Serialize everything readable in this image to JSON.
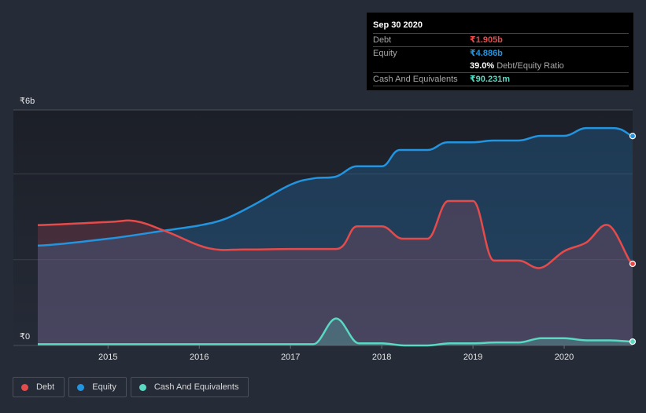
{
  "chart_data": {
    "type": "area",
    "title": "",
    "xlabel": "",
    "ylabel": "",
    "x_ticks": [
      "2015",
      "2016",
      "2017",
      "2018",
      "2019",
      "2020"
    ],
    "y_tick_labels": {
      "top": "₹6b",
      "bottom": "₹0"
    },
    "gridlines_b": [
      2,
      4
    ],
    "ylim_b": [
      0,
      5.5
    ],
    "xlim_year": [
      2014.23,
      2020.75
    ],
    "grid": true,
    "legend_position": "bottom-left",
    "series": [
      {
        "name": "Debt",
        "color": "#e64b4b",
        "x": [
          2014.23,
          2015.0,
          2015.3,
          2015.65,
          2016.1,
          2016.5,
          2017.0,
          2017.5,
          2017.73,
          2018.0,
          2018.23,
          2018.5,
          2018.73,
          2019.0,
          2019.23,
          2019.5,
          2019.74,
          2020.0,
          2020.24,
          2020.49,
          2020.75
        ],
        "values": [
          2.81,
          2.88,
          2.9,
          2.65,
          2.27,
          2.24,
          2.25,
          2.25,
          2.78,
          2.78,
          2.49,
          2.49,
          3.37,
          3.37,
          1.98,
          1.98,
          1.81,
          2.2,
          2.4,
          2.8,
          1.905
        ]
      },
      {
        "name": "Equity",
        "color": "#2394df",
        "x": [
          2014.23,
          2015.0,
          2015.65,
          2016.0,
          2016.28,
          2016.58,
          2017.0,
          2017.26,
          2017.5,
          2017.73,
          2018.0,
          2018.2,
          2018.5,
          2018.72,
          2019.0,
          2019.22,
          2019.5,
          2019.74,
          2020.0,
          2020.24,
          2020.49,
          2020.62,
          2020.75
        ],
        "values": [
          2.33,
          2.49,
          2.69,
          2.8,
          2.95,
          3.26,
          3.75,
          3.9,
          3.94,
          4.18,
          4.18,
          4.56,
          4.56,
          4.74,
          4.74,
          4.78,
          4.78,
          4.89,
          4.89,
          5.07,
          5.07,
          5.04,
          4.886
        ]
      },
      {
        "name": "Cash And Equivalents",
        "color": "#59d9c2",
        "x": [
          2014.23,
          2015.0,
          2016.0,
          2017.0,
          2017.25,
          2017.5,
          2017.75,
          2018.0,
          2018.25,
          2018.5,
          2018.75,
          2019.0,
          2019.25,
          2019.5,
          2019.75,
          2020.0,
          2020.25,
          2020.5,
          2020.75
        ],
        "values": [
          0.03,
          0.03,
          0.03,
          0.03,
          0.03,
          0.63,
          0.05,
          0.05,
          0.0,
          0.0,
          0.05,
          0.05,
          0.07,
          0.07,
          0.17,
          0.17,
          0.12,
          0.12,
          0.09
        ]
      }
    ]
  },
  "tooltip": {
    "date": "Sep 30 2020",
    "rows": {
      "debt": {
        "label": "Debt",
        "value": "₹1.905b",
        "color": "#e64b4b"
      },
      "equity": {
        "label": "Equity",
        "value": "₹4.886b",
        "color": "#2394df"
      },
      "ratio": {
        "value": "39.0%",
        "label": "Debt/Equity Ratio"
      },
      "cash": {
        "label": "Cash And Equivalents",
        "value": "₹90.231m",
        "color": "#59d9c2"
      }
    }
  },
  "legend": [
    {
      "label": "Debt",
      "color": "#e64b4b"
    },
    {
      "label": "Equity",
      "color": "#2394df"
    },
    {
      "label": "Cash And Equivalents",
      "color": "#59d9c2"
    }
  ]
}
